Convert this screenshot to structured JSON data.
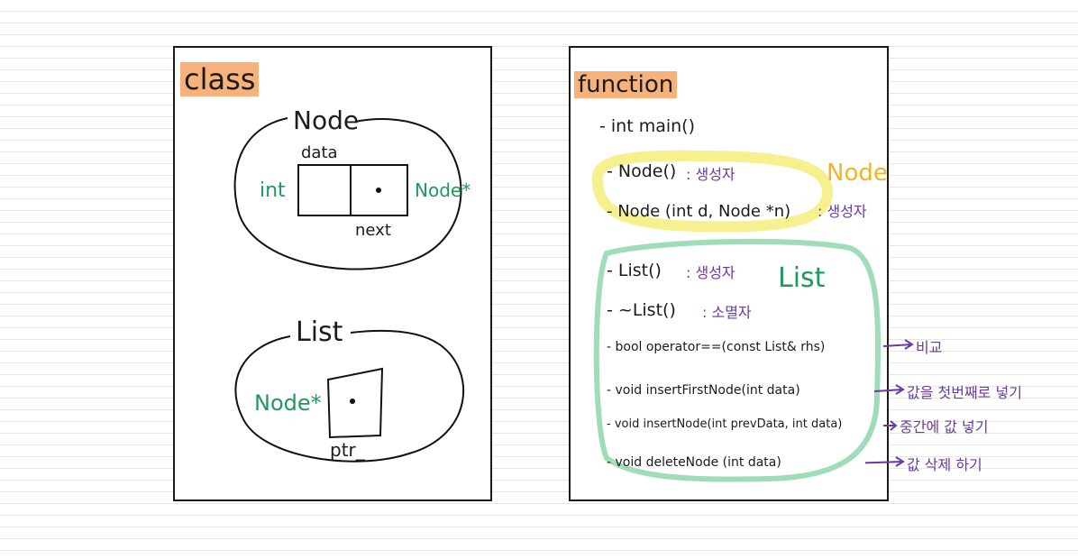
{
  "class_panel": {
    "heading": "class",
    "node": {
      "title": "Node",
      "field_top": "data",
      "field_bottom": "next",
      "left_type": "int",
      "right_type": "Node*"
    },
    "list": {
      "title": "List",
      "pointer_type": "Node*",
      "pointer_name": "ptr_"
    }
  },
  "function_panel": {
    "heading": "function",
    "main": "- int  main()",
    "node_group": {
      "label": "Node",
      "items": [
        {
          "sig": "- Node()",
          "note": ": 생성자"
        },
        {
          "sig": "- Node (int d, Node *n)",
          "note": ": 생성자"
        }
      ]
    },
    "list_group": {
      "label": "List",
      "items": [
        {
          "sig": "- List()",
          "note": ": 생성자",
          "arrow_note": ""
        },
        {
          "sig": "- ~List()",
          "note": ": 소멸자",
          "arrow_note": ""
        },
        {
          "sig": "- bool  operator==(const List& rhs)",
          "note": "",
          "arrow_note": "비교"
        },
        {
          "sig": "- void  insertFirstNode(int data)",
          "note": "",
          "arrow_note": "값을 첫번째로 넣기"
        },
        {
          "sig": "- void  insertNode(int prevData, int data)",
          "note": "",
          "arrow_note": "중간에 값 넣기"
        },
        {
          "sig": "- void  deleteNode (int data)",
          "note": "",
          "arrow_note": "값 삭제 하기"
        }
      ]
    }
  },
  "colors": {
    "heading_highlight": "#f7b27b",
    "node_group_highlight": "#f7f08e",
    "list_group_outline": "#9fdcb8",
    "note_purple": "#6a3aa2",
    "type_green": "#1e9a5c",
    "node_label_yellow": "#f0b622"
  }
}
